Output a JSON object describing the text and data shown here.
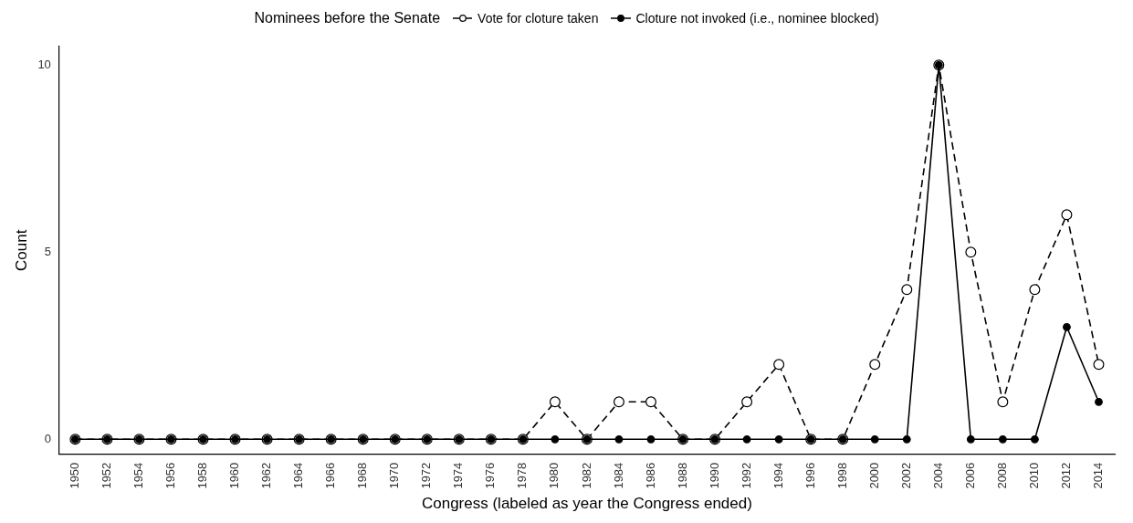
{
  "chart_data": {
    "type": "line",
    "legend_title": "Nominees before the Senate",
    "xlabel": "Congress (labeled as year the Congress ended)",
    "ylabel": "Count",
    "categories": [
      "1950",
      "1952",
      "1954",
      "1956",
      "1958",
      "1960",
      "1962",
      "1964",
      "1966",
      "1968",
      "1970",
      "1972",
      "1974",
      "1976",
      "1978",
      "1980",
      "1982",
      "1984",
      "1986",
      "1988",
      "1990",
      "1992",
      "1994",
      "1996",
      "1998",
      "2000",
      "2002",
      "2004",
      "2006",
      "2008",
      "2010",
      "2012",
      "2014"
    ],
    "series": [
      {
        "name": "Vote for cloture taken",
        "color": "#000000",
        "line_style": "dashed",
        "marker": "circle",
        "values": [
          0,
          0,
          0,
          0,
          0,
          0,
          0,
          0,
          0,
          0,
          0,
          0,
          0,
          0,
          0,
          1,
          0,
          1,
          1,
          0,
          0,
          1,
          2,
          0,
          0,
          2,
          4,
          10,
          5,
          1,
          4,
          6,
          2
        ]
      },
      {
        "name": "Cloture not invoked (i.e., nominee blocked)",
        "color": "#000000",
        "line_style": "solid",
        "marker": "circle",
        "values": [
          0,
          0,
          0,
          0,
          0,
          0,
          0,
          0,
          0,
          0,
          0,
          0,
          0,
          0,
          0,
          0,
          0,
          0,
          0,
          0,
          0,
          0,
          0,
          0,
          0,
          0,
          0,
          10,
          0,
          0,
          0,
          3,
          1
        ]
      }
    ],
    "ylim": [
      -0.4,
      10.5
    ],
    "yticks": [
      0,
      5,
      10
    ],
    "grid": false,
    "legend": "top"
  }
}
